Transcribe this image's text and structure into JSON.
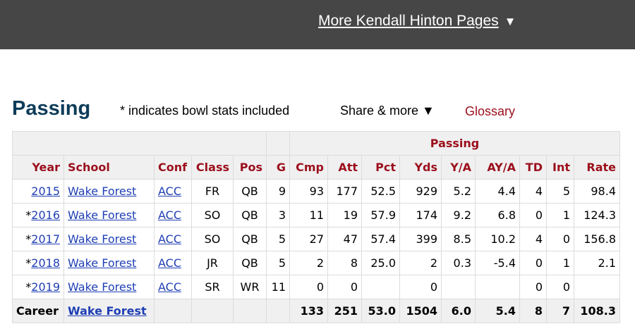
{
  "nav": {
    "more_pages_label": "More Kendall Hinton Pages",
    "caret": "▼"
  },
  "section": {
    "title": "Passing",
    "note": "* indicates bowl stats included",
    "share_label": "Share & more ▼",
    "glossary_label": "Glossary"
  },
  "table": {
    "group_header": "Passing",
    "columns": [
      "Year",
      "School",
      "Conf",
      "Class",
      "Pos",
      "G",
      "Cmp",
      "Att",
      "Pct",
      "Yds",
      "Y/A",
      "AY/A",
      "TD",
      "Int",
      "Rate"
    ],
    "rows": [
      {
        "year": "2015",
        "bowl": "",
        "school": "Wake Forest",
        "conf": "ACC",
        "class": "FR",
        "pos": "QB",
        "g": "9",
        "cmp": "93",
        "att": "177",
        "pct": "52.5",
        "yds": "929",
        "ya": "5.2",
        "aya": "4.4",
        "td": "4",
        "int": "5",
        "rate": "98.4"
      },
      {
        "year": "2016",
        "bowl": "*",
        "school": "Wake Forest",
        "conf": "ACC",
        "class": "SO",
        "pos": "QB",
        "g": "3",
        "cmp": "11",
        "att": "19",
        "pct": "57.9",
        "yds": "174",
        "ya": "9.2",
        "aya": "6.8",
        "td": "0",
        "int": "1",
        "rate": "124.3"
      },
      {
        "year": "2017",
        "bowl": "*",
        "school": "Wake Forest",
        "conf": "ACC",
        "class": "SO",
        "pos": "QB",
        "g": "5",
        "cmp": "27",
        "att": "47",
        "pct": "57.4",
        "yds": "399",
        "ya": "8.5",
        "aya": "10.2",
        "td": "4",
        "int": "0",
        "rate": "156.8"
      },
      {
        "year": "2018",
        "bowl": "*",
        "school": "Wake Forest",
        "conf": "ACC",
        "class": "JR",
        "pos": "QB",
        "g": "5",
        "cmp": "2",
        "att": "8",
        "pct": "25.0",
        "yds": "2",
        "ya": "0.3",
        "aya": "-5.4",
        "td": "0",
        "int": "1",
        "rate": "2.1"
      },
      {
        "year": "2019",
        "bowl": "*",
        "school": "Wake Forest",
        "conf": "ACC",
        "class": "SR",
        "pos": "WR",
        "g": "11",
        "cmp": "0",
        "att": "0",
        "pct": "",
        "yds": "0",
        "ya": "",
        "aya": "",
        "td": "0",
        "int": "0",
        "rate": ""
      }
    ],
    "career": {
      "label": "Career",
      "school": "Wake Forest",
      "cmp": "133",
      "att": "251",
      "pct": "53.0",
      "yds": "1504",
      "ya": "6.0",
      "aya": "5.4",
      "td": "8",
      "int": "7",
      "rate": "108.3"
    }
  }
}
